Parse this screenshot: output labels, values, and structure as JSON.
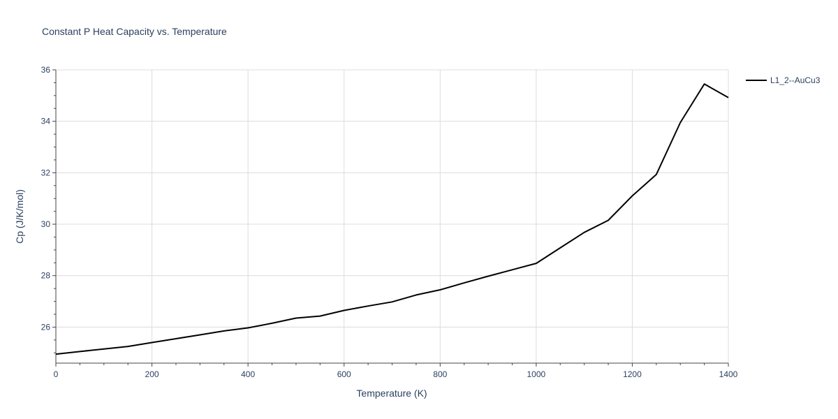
{
  "chart_data": {
    "type": "line",
    "title": "Constant P Heat Capacity vs. Temperature",
    "xlabel": "Temperature (K)",
    "ylabel": "Cp (J/K/mol)",
    "xlim": [
      0,
      1400
    ],
    "ylim": [
      24.6,
      36
    ],
    "xticks": [
      0,
      200,
      400,
      600,
      800,
      1000,
      1200,
      1400
    ],
    "yticks": [
      26,
      28,
      30,
      32,
      34,
      36
    ],
    "grid": true,
    "legend_position": "top-right outside",
    "series": [
      {
        "name": "L1_2--AuCu3",
        "color": "#000000",
        "x": [
          0,
          50,
          100,
          150,
          200,
          250,
          300,
          350,
          400,
          450,
          500,
          550,
          600,
          650,
          700,
          750,
          800,
          850,
          900,
          950,
          1000,
          1050,
          1100,
          1150,
          1200,
          1250,
          1300,
          1350,
          1400
        ],
        "y": [
          24.95,
          25.05,
          25.15,
          25.25,
          25.4,
          25.55,
          25.7,
          25.85,
          25.97,
          26.15,
          26.35,
          26.43,
          26.65,
          26.82,
          26.98,
          27.25,
          27.45,
          27.72,
          27.98,
          28.23,
          28.48,
          29.08,
          29.68,
          30.15,
          31.1,
          31.93,
          33.95,
          35.45,
          34.92
        ]
      }
    ]
  }
}
